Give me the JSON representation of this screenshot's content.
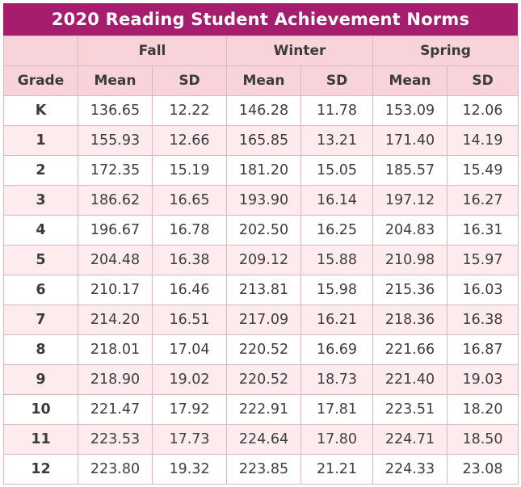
{
  "title": "2020 Reading Student Achievement Norms",
  "seasons": [
    "Fall",
    "Winter",
    "Spring"
  ],
  "headers": {
    "grade": "Grade",
    "mean": "Mean",
    "sd": "SD"
  },
  "rows": [
    {
      "grade": "K",
      "fall_mean": "136.65",
      "fall_sd": "12.22",
      "winter_mean": "146.28",
      "winter_sd": "11.78",
      "spring_mean": "153.09",
      "spring_sd": "12.06"
    },
    {
      "grade": "1",
      "fall_mean": "155.93",
      "fall_sd": "12.66",
      "winter_mean": "165.85",
      "winter_sd": "13.21",
      "spring_mean": "171.40",
      "spring_sd": "14.19"
    },
    {
      "grade": "2",
      "fall_mean": "172.35",
      "fall_sd": "15.19",
      "winter_mean": "181.20",
      "winter_sd": "15.05",
      "spring_mean": "185.57",
      "spring_sd": "15.49"
    },
    {
      "grade": "3",
      "fall_mean": "186.62",
      "fall_sd": "16.65",
      "winter_mean": "193.90",
      "winter_sd": "16.14",
      "spring_mean": "197.12",
      "spring_sd": "16.27"
    },
    {
      "grade": "4",
      "fall_mean": "196.67",
      "fall_sd": "16.78",
      "winter_mean": "202.50",
      "winter_sd": "16.25",
      "spring_mean": "204.83",
      "spring_sd": "16.31"
    },
    {
      "grade": "5",
      "fall_mean": "204.48",
      "fall_sd": "16.38",
      "winter_mean": "209.12",
      "winter_sd": "15.88",
      "spring_mean": "210.98",
      "spring_sd": "15.97"
    },
    {
      "grade": "6",
      "fall_mean": "210.17",
      "fall_sd": "16.46",
      "winter_mean": "213.81",
      "winter_sd": "15.98",
      "spring_mean": "215.36",
      "spring_sd": "16.03"
    },
    {
      "grade": "7",
      "fall_mean": "214.20",
      "fall_sd": "16.51",
      "winter_mean": "217.09",
      "winter_sd": "16.21",
      "spring_mean": "218.36",
      "spring_sd": "16.38"
    },
    {
      "grade": "8",
      "fall_mean": "218.01",
      "fall_sd": "17.04",
      "winter_mean": "220.52",
      "winter_sd": "16.69",
      "spring_mean": "221.66",
      "spring_sd": "16.87"
    },
    {
      "grade": "9",
      "fall_mean": "218.90",
      "fall_sd": "19.02",
      "winter_mean": "220.52",
      "winter_sd": "18.73",
      "spring_mean": "221.40",
      "spring_sd": "19.03"
    },
    {
      "grade": "10",
      "fall_mean": "221.47",
      "fall_sd": "17.92",
      "winter_mean": "222.91",
      "winter_sd": "17.81",
      "spring_mean": "223.51",
      "spring_sd": "18.20"
    },
    {
      "grade": "11",
      "fall_mean": "223.53",
      "fall_sd": "17.73",
      "winter_mean": "224.64",
      "winter_sd": "17.80",
      "spring_mean": "224.71",
      "spring_sd": "18.50"
    },
    {
      "grade": "12",
      "fall_mean": "223.80",
      "fall_sd": "19.32",
      "winter_mean": "223.85",
      "winter_sd": "21.21",
      "spring_mean": "224.33",
      "spring_sd": "23.08"
    }
  ],
  "colors": {
    "title_bg": "#a51d6c",
    "header_bg": "#f9d3da",
    "alt_row_bg": "#fdebee",
    "border": "#d9b8c6"
  }
}
